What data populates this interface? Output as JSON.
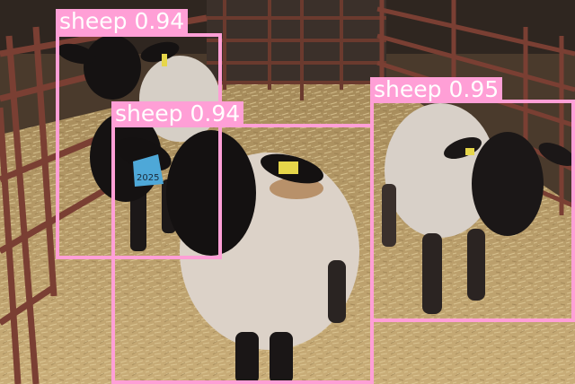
{
  "detections": [
    {
      "label": "sheep",
      "score": "0.94",
      "color": "#ff9fd6"
    },
    {
      "label": "sheep",
      "score": "0.94",
      "color": "#ff9fd6"
    },
    {
      "label": "sheep",
      "score": "0.95",
      "color": "#ff9fd6"
    }
  ],
  "ear_tags": {
    "front_sheep_tag": "2025"
  }
}
